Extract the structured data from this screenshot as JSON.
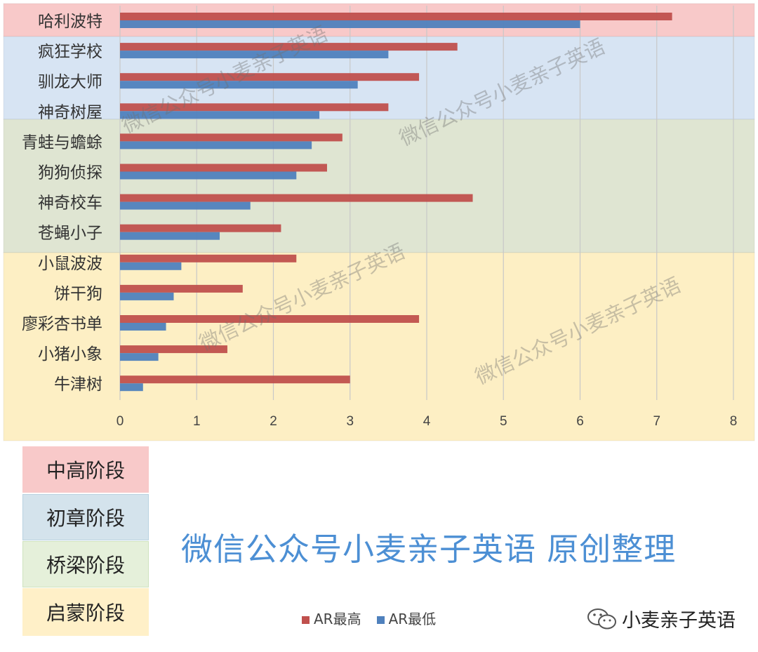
{
  "chart_data": {
    "type": "bar",
    "orientation": "horizontal",
    "categories": [
      "哈利波特",
      "疯狂学校",
      "驯龙大师",
      "神奇树屋",
      "青蛙与蟾蜍",
      "狗狗侦探",
      "神奇校车",
      "苍蝇小子",
      "小鼠波波",
      "饼干狗",
      "廖彩杏书单",
      "小猪小象",
      "牛津树"
    ],
    "series": [
      {
        "name": "AR最高",
        "color": "#c0504d",
        "values": [
          7.2,
          4.4,
          3.9,
          3.5,
          2.9,
          2.7,
          4.6,
          2.1,
          2.3,
          1.6,
          3.9,
          1.4,
          3.0
        ]
      },
      {
        "name": "AR最低",
        "color": "#4f81bd",
        "values": [
          6.0,
          3.5,
          3.1,
          2.6,
          2.5,
          2.3,
          1.7,
          1.3,
          0.8,
          0.7,
          0.6,
          0.5,
          0.3
        ]
      }
    ],
    "xlim": [
      0,
      8
    ],
    "xticks": [
      "0",
      "1",
      "2",
      "3",
      "4",
      "5",
      "6",
      "7",
      "8"
    ],
    "grid": true,
    "legend_position": "bottom"
  },
  "stages": [
    {
      "label": "中高阶段",
      "color": "#f8c9c9",
      "rows": [
        0
      ]
    },
    {
      "label": "初章阶段",
      "color": "#d7e4f3",
      "rows": [
        1,
        2,
        3
      ]
    },
    {
      "label": "桥梁阶段",
      "color": "#dfe5d2",
      "rows": [
        4,
        5,
        6,
        7
      ]
    },
    {
      "label": "启蒙阶段",
      "color": "#fdefc4",
      "rows": [
        8,
        9,
        10,
        11,
        12
      ]
    }
  ],
  "watermark": "微信公众号小麦亲子英语",
  "credit": "微信公众号小麦亲子英语  原创整理",
  "account_name": "小麦亲子英语"
}
